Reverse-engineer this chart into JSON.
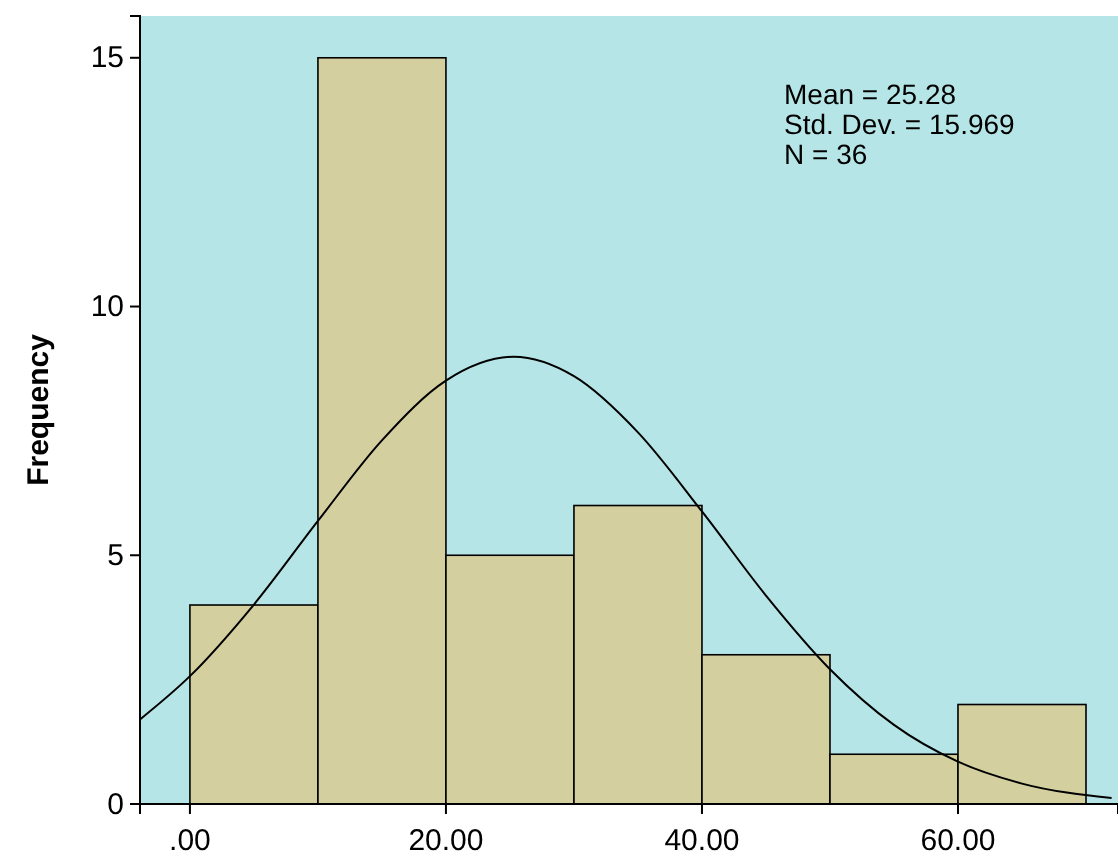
{
  "chart_data": {
    "type": "histogram",
    "ylabel": "Frequency",
    "bins": [
      0,
      10,
      20,
      30,
      40,
      50,
      60,
      70
    ],
    "series": [
      {
        "color": "#d3cf9f",
        "values": [
          4,
          15,
          5,
          6,
          3,
          1,
          2
        ]
      },
      {
        "type": "line",
        "color": "#000000",
        "x": [
          -3.9,
          0,
          5,
          10,
          15,
          20,
          25.28,
          30,
          35,
          40,
          45,
          50,
          55,
          60,
          65,
          72
        ],
        "values": [
          1.7,
          2.57,
          4.01,
          5.69,
          7.31,
          8.51,
          8.99,
          8.6,
          7.47,
          5.88,
          4.19,
          2.71,
          1.59,
          0.85,
          0.41,
          0.12
        ]
      }
    ],
    "xlim": [
      -3.9,
      72.5
    ],
    "ylim": [
      0,
      15.84
    ],
    "xticks": [
      {
        "value": 0,
        "label": ".00"
      },
      {
        "value": 20,
        "label": "20.00"
      },
      {
        "value": 40,
        "label": "40.00"
      },
      {
        "value": 60,
        "label": "60.00"
      }
    ],
    "yticks": [
      0,
      5,
      10,
      15
    ],
    "marker": "none",
    "line_style": "solid",
    "annotations": [
      "Mean = 25.28",
      "Std. Dev. = 15.969",
      "N = 36"
    ]
  }
}
